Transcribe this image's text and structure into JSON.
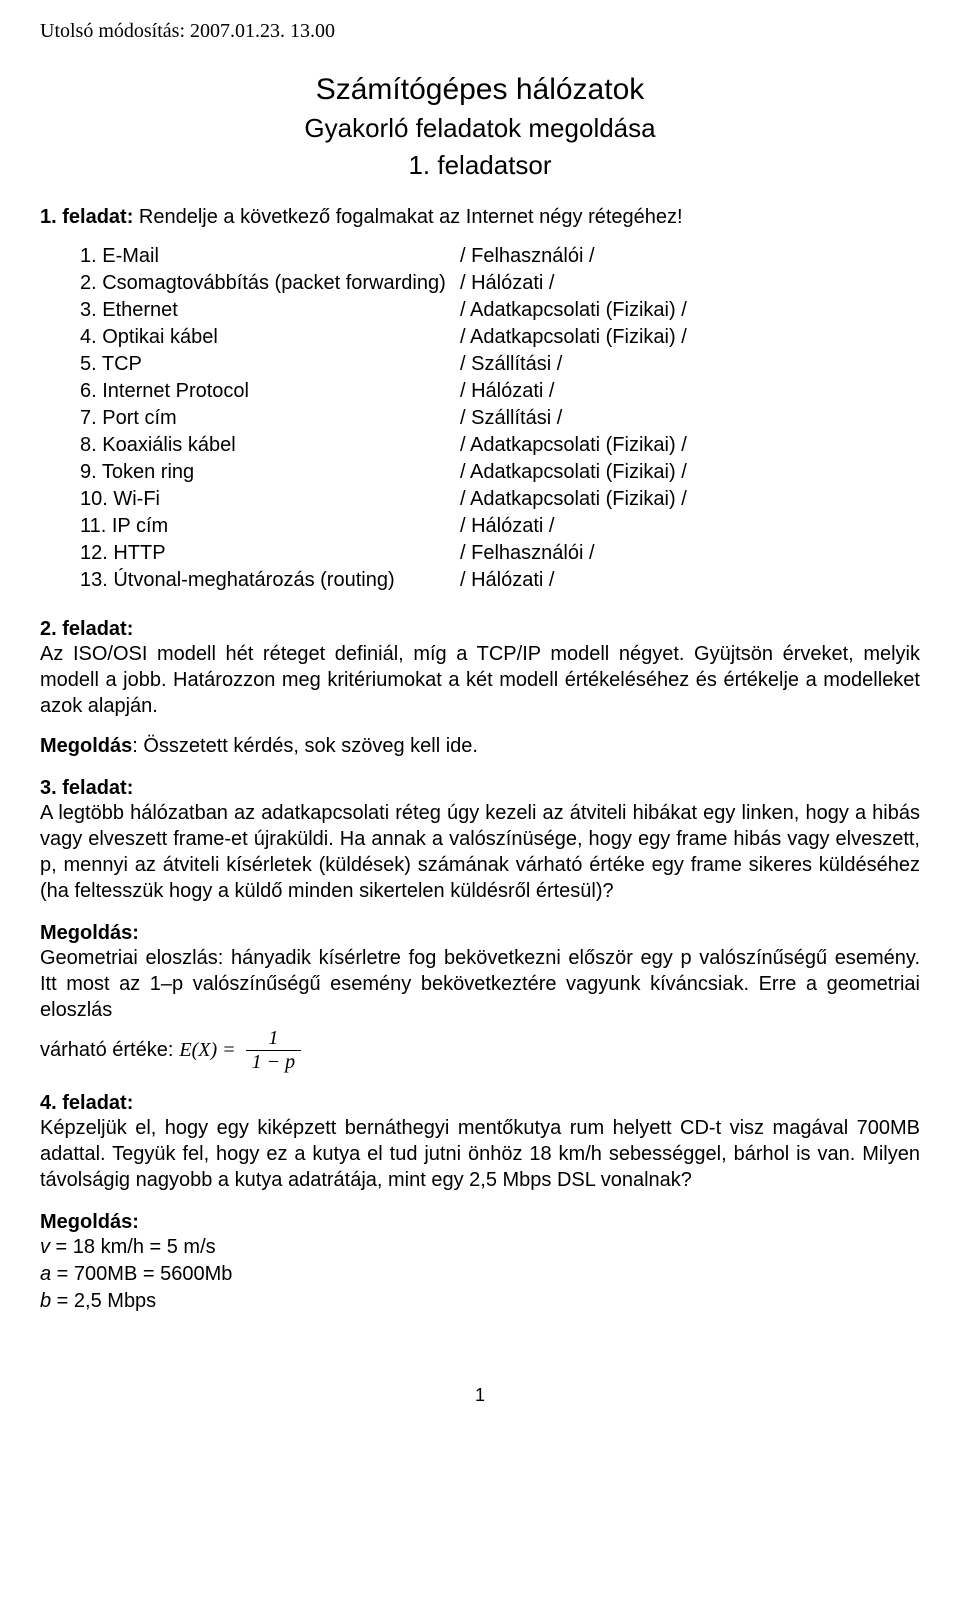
{
  "header": {
    "lastModified": "Utolsó módosítás: 2007.01.23. 13.00"
  },
  "titleBlock": {
    "title": "Számítógépes hálózatok",
    "subtitle": "Gyakorló feladatok megoldása",
    "series": "1. feladatsor"
  },
  "task1": {
    "label": "1. feladat:",
    "text": " Rendelje a következő fogalmakat az Internet négy rétegéhez!",
    "rows": [
      {
        "left": "1. E-Mail",
        "right": "/ Felhasználói /"
      },
      {
        "left": "2. Csomagtovábbítás (packet forwarding)",
        "right": "/ Hálózati /"
      },
      {
        "left": "3. Ethernet",
        "right": "/ Adatkapcsolati (Fizikai) /"
      },
      {
        "left": "4. Optikai kábel",
        "right": "/ Adatkapcsolati (Fizikai) /"
      },
      {
        "left": "5. TCP",
        "right": "/ Szállítási /"
      },
      {
        "left": "6. Internet Protocol",
        "right": "/ Hálózati /"
      },
      {
        "left": "7. Port cím",
        "right": "/ Szállítási /"
      },
      {
        "left": "8. Koaxiális kábel",
        "right": "/ Adatkapcsolati (Fizikai) /"
      },
      {
        "left": "9. Token ring",
        "right": "/ Adatkapcsolati (Fizikai) /"
      },
      {
        "left": "10. Wi-Fi",
        "right": "/ Adatkapcsolati (Fizikai) /"
      },
      {
        "left": "11. IP cím",
        "right": "/ Hálózati /"
      },
      {
        "left": "12. HTTP",
        "right": "/ Felhasználói /"
      },
      {
        "left": "13. Útvonal-meghatározás (routing)",
        "right": "/ Hálózati /"
      }
    ]
  },
  "task2": {
    "label": "2. feladat:",
    "body": "Az ISO/OSI modell hét réteget definiál, míg a TCP/IP modell négyet. Gyüjtsön érveket, melyik modell a jobb. Határozzon meg kritériumokat a két modell értékeléséhez és értékelje a modelleket azok alapján.",
    "solutionLabel": "Megoldás",
    "solutionText": ": Összetett kérdés, sok szöveg kell ide."
  },
  "task3": {
    "label": "3. feladat:",
    "body": "A legtöbb hálózatban az adatkapcsolati réteg úgy kezeli az átviteli hibákat egy linken, hogy a hibás vagy elveszett frame-et újraküldi. Ha annak a valószínüsége, hogy egy frame hibás vagy elveszett, p, mennyi az átviteli kísérletek (küldések) számának várható értéke egy frame sikeres küldéséhez (ha feltesszük hogy a küldő minden sikertelen küldésről értesül)?",
    "solutionLabel": "Megoldás:",
    "solutionBody": "Geometriai eloszlás: hányadik kísérletre fog bekövetkezni először egy p valószínűségű esemény. Itt most az 1–p valószínűségű esemény bekövetkeztére vagyunk kíváncsiak. Erre a geometriai eloszlás",
    "formulaPrefix": "várható értéke: ",
    "formulaEX": "E(X) =",
    "formulaNum": "1",
    "formulaDen": "1 − p"
  },
  "task4": {
    "label": "4. feladat:",
    "body": "Képzeljük el, hogy egy kiképzett bernáthegyi mentőkutya rum helyett CD-t visz magával 700MB adattal. Tegyük fel, hogy ez a kutya el tud jutni önhöz 18 km/h sebességgel, bárhol is van. Milyen távolságig nagyobb a kutya adatrátája, mint egy 2,5 Mbps DSL vonalnak?",
    "solutionLabel": "Megoldás:",
    "vals": [
      {
        "sym": "v",
        "rest": " = 18 km/h = 5 m/s"
      },
      {
        "sym": "a",
        "rest": " = 700MB = 5600Mb"
      },
      {
        "sym": "b",
        "rest": " = 2,5 Mbps"
      }
    ]
  },
  "pageNumber": "1"
}
